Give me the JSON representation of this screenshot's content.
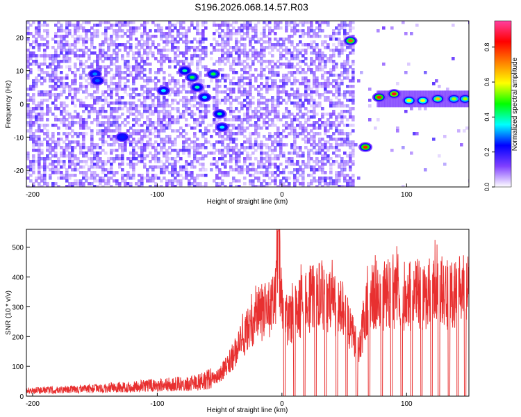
{
  "title": "S196.2026.068.14.57.R03",
  "chart_data": [
    {
      "type": "heatmap",
      "name": "spectrogram",
      "xlabel": "Height of straight line (km)",
      "ylabel": "Frequency (Hz)",
      "xlim": [
        -205,
        150
      ],
      "ylim": [
        -25,
        25
      ],
      "xticks": [
        -200,
        -100,
        0,
        100
      ],
      "xtick_labels": [
        "-200",
        "-100",
        "0",
        "100"
      ],
      "yticks": [
        -20,
        -10,
        0,
        10,
        20
      ],
      "ytick_labels": [
        "-20",
        "-10",
        "0",
        "10",
        "20"
      ],
      "colorbar": {
        "label": "Normalized spectral amplitude",
        "range": [
          0.0,
          0.95
        ],
        "ticks": [
          0.0,
          0.2,
          0.4,
          0.6,
          0.8
        ],
        "tick_labels": [
          "0.0",
          "0.2",
          "0.4",
          "0.6",
          "0.8"
        ],
        "colormap": [
          "#ffffff",
          "#8040ff",
          "#0000ff",
          "#00ffff",
          "#00ff00",
          "#ffff00",
          "#ff8000",
          "#ff0000",
          "#ff40a0"
        ]
      },
      "features": [
        {
          "x": -150,
          "y": 9,
          "value": 0.3
        },
        {
          "x": -148,
          "y": 7,
          "value": 0.28
        },
        {
          "x": -128,
          "y": -10,
          "value": 0.25
        },
        {
          "x": -95,
          "y": 4,
          "value": 0.35
        },
        {
          "x": -78,
          "y": 10,
          "value": 0.4
        },
        {
          "x": -72,
          "y": 8,
          "value": 0.45
        },
        {
          "x": -68,
          "y": 5,
          "value": 0.4
        },
        {
          "x": -62,
          "y": 2,
          "value": 0.35
        },
        {
          "x": -55,
          "y": 9,
          "value": 0.45
        },
        {
          "x": -50,
          "y": -3,
          "value": 0.4
        },
        {
          "x": -48,
          "y": -7,
          "value": 0.35
        },
        {
          "x": 55,
          "y": 19,
          "value": 0.75
        },
        {
          "x": 67,
          "y": -13,
          "value": 0.8
        },
        {
          "x": 78,
          "y": 2,
          "value": 0.8
        },
        {
          "x": 90,
          "y": 3,
          "value": 0.85
        },
        {
          "x": 102,
          "y": 1,
          "value": 0.6
        },
        {
          "x": 113,
          "y": 1,
          "value": 0.6
        },
        {
          "x": 125,
          "y": 1.5,
          "value": 0.65
        },
        {
          "x": 138,
          "y": 1.5,
          "value": 0.55
        },
        {
          "x": 147,
          "y": 1.5,
          "value": 0.55
        }
      ]
    },
    {
      "type": "line",
      "name": "snr",
      "xlabel": "Height of straight line (km)",
      "ylabel": "SNR (10 * v/v)",
      "xlim": [
        -205,
        150
      ],
      "ylim": [
        0,
        560
      ],
      "xticks": [
        -200,
        -100,
        0,
        100
      ],
      "xtick_labels": [
        "-200",
        "-100",
        "0",
        "100"
      ],
      "yticks": [
        0,
        100,
        200,
        300,
        400,
        500
      ],
      "ytick_labels": [
        "0",
        "100",
        "200",
        "300",
        "400",
        "500"
      ],
      "series": [
        {
          "name": "SNR",
          "color": "#e83030",
          "x": [
            -205,
            -190,
            -175,
            -160,
            -150,
            -140,
            -130,
            -120,
            -110,
            -100,
            -90,
            -80,
            -70,
            -60,
            -50,
            -45,
            -40,
            -35,
            -30,
            -25,
            -20,
            -15,
            -10,
            -5,
            -3,
            0,
            5,
            10,
            15,
            20,
            25,
            30,
            35,
            40,
            45,
            50,
            55,
            60,
            62,
            65,
            70,
            75,
            80,
            85,
            90,
            95,
            100,
            105,
            110,
            115,
            120,
            125,
            130,
            135,
            140,
            145,
            150
          ],
          "y": [
            18,
            20,
            22,
            24,
            25,
            28,
            30,
            30,
            35,
            38,
            40,
            42,
            45,
            55,
            70,
            100,
            130,
            170,
            200,
            240,
            260,
            280,
            300,
            320,
            555,
            280,
            250,
            270,
            300,
            320,
            330,
            335,
            320,
            310,
            300,
            280,
            220,
            170,
            150,
            230,
            320,
            340,
            330,
            350,
            340,
            345,
            330,
            340,
            345,
            340,
            350,
            355,
            345,
            340,
            350,
            355,
            360
          ]
        }
      ],
      "dropouts_x": [
        2,
        10,
        18,
        27,
        35,
        44,
        52,
        60,
        70,
        80,
        88,
        96,
        104,
        112,
        120,
        126,
        134,
        141,
        147
      ],
      "dropout_value": 0
    }
  ]
}
